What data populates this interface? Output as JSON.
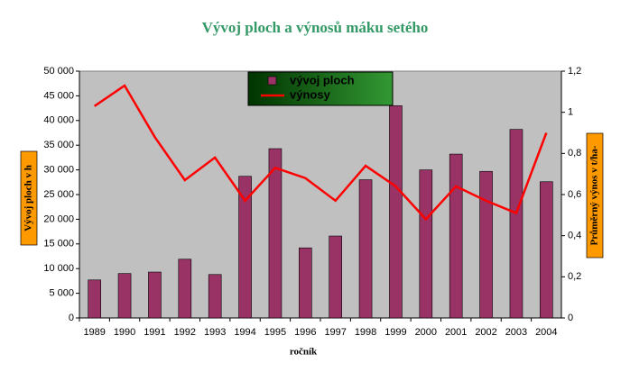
{
  "chart_data": {
    "type": "bar_line",
    "title": "Vývoj ploch a výnosů máku setého",
    "x_label": "ročník",
    "y_label": "Vývoj ploch v h",
    "y2_label": "Průměrný výnos v t/ha-",
    "categories": [
      "1989",
      "1990",
      "1991",
      "1992",
      "1993",
      "1994",
      "1995",
      "1996",
      "1997",
      "1998",
      "1999",
      "2000",
      "2001",
      "2002",
      "2003",
      "2004"
    ],
    "series": [
      {
        "name": "vývoj ploch",
        "type": "bar",
        "color": "#993366",
        "values": [
          7700,
          9000,
          9300,
          11900,
          8800,
          28700,
          34300,
          14200,
          16600,
          28000,
          43000,
          30000,
          33200,
          29700,
          38200,
          27600
        ]
      },
      {
        "name": "výnosy",
        "type": "line",
        "axis": "y2",
        "color": "#ff0000",
        "values": [
          1.03,
          1.13,
          0.88,
          0.67,
          0.78,
          0.57,
          0.73,
          0.68,
          0.57,
          0.74,
          0.64,
          0.48,
          0.64,
          0.57,
          0.51,
          0.9
        ]
      }
    ],
    "ylim": [
      0,
      50000
    ],
    "yticks": [
      0,
      {
        "value": 5000,
        "label": "5 000"
      },
      {
        "value": 10000,
        "label": "10 000"
      },
      {
        "value": 15000,
        "label": "15 000"
      },
      {
        "value": 20000,
        "label": "20 000"
      },
      {
        "value": 25000,
        "label": "25 000"
      },
      {
        "value": 30000,
        "label": "30 000"
      },
      {
        "value": 35000,
        "label": "35 000"
      },
      {
        "value": 40000,
        "label": "40 000"
      },
      {
        "value": 45000,
        "label": "45 000"
      },
      {
        "value": 50000,
        "label": "50 000"
      }
    ],
    "y2lim": [
      0,
      1.2
    ],
    "y2ticks": [
      0,
      {
        "value": 0.2,
        "label": "0,2"
      },
      {
        "value": 0.4,
        "label": "0,4"
      },
      {
        "value": 0.6,
        "label": "0,6"
      },
      {
        "value": 0.8,
        "label": "0,8"
      },
      1,
      {
        "value": 1.2,
        "label": "1,2"
      }
    ],
    "legend": "top",
    "plot_background": "#c0c0c0"
  }
}
